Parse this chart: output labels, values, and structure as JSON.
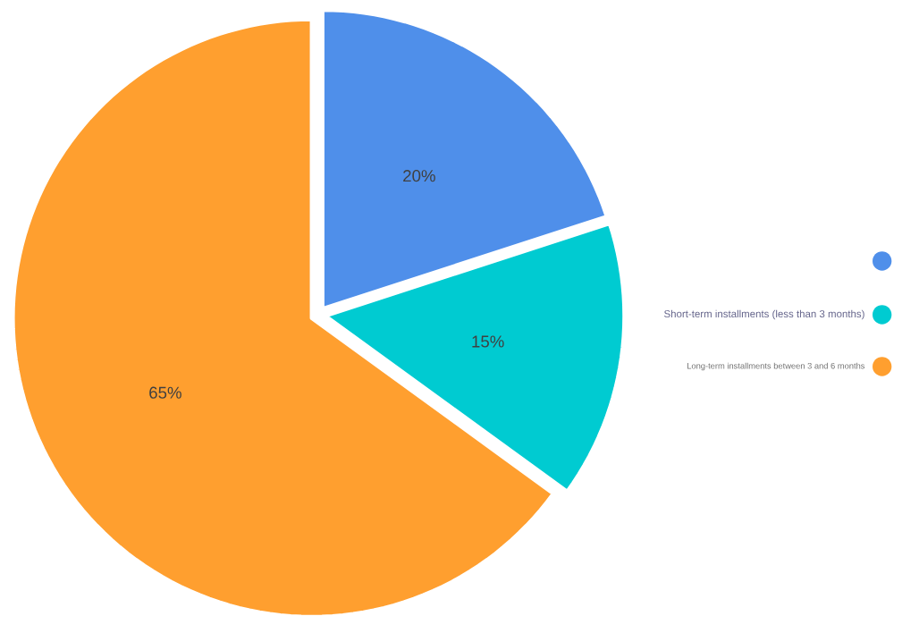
{
  "chart_data": {
    "type": "pie",
    "categories": [
      null,
      "Short-term installments (less than 3 months)",
      "Long-term installments between 3 and 6 months"
    ],
    "values": [
      20,
      15,
      65
    ],
    "colors": [
      "#4f8fea",
      "#00cbd1",
      "#ff9f2f"
    ],
    "value_labels": [
      "20%",
      "15%",
      "65%"
    ],
    "legend": "right"
  }
}
